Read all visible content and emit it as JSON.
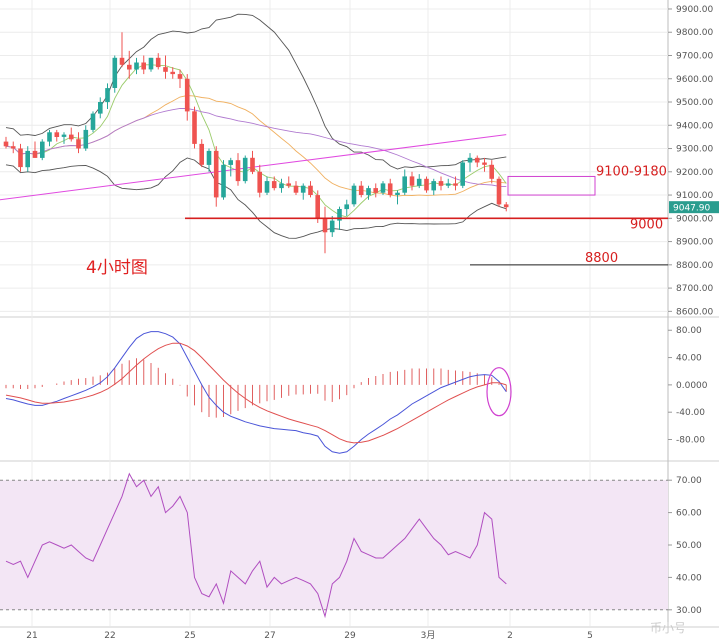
{
  "chart_data": {
    "type": "candlestick",
    "title": "4小时图",
    "watermark": "币小号",
    "colors": {
      "up": "#26a69a",
      "down": "#ef5350",
      "accent": "#d61f1f",
      "rsi_band": "#f3e6f5"
    },
    "price_panel": {
      "ylim": [
        8580,
        9930
      ],
      "yticks": [
        "9900.00",
        "9800.00",
        "9700.00",
        "9600.00",
        "9500.00",
        "9400.00",
        "9300.00",
        "9200.00",
        "9100.00",
        "9000.00",
        "8900.00",
        "8800.00",
        "8700.00",
        "8600.00"
      ],
      "last_price_label": "9047.90",
      "last_price": 9047.9,
      "candles": [
        [
          9330,
          9350,
          9300,
          9310
        ],
        [
          9310,
          9330,
          9280,
          9300
        ],
        [
          9300,
          9320,
          9200,
          9220
        ],
        [
          9220,
          9310,
          9200,
          9290
        ],
        [
          9290,
          9330,
          9260,
          9260
        ],
        [
          9260,
          9340,
          9250,
          9330
        ],
        [
          9330,
          9380,
          9310,
          9370
        ],
        [
          9370,
          9380,
          9330,
          9350
        ],
        [
          9350,
          9370,
          9320,
          9360
        ],
        [
          9360,
          9390,
          9330,
          9340
        ],
        [
          9340,
          9370,
          9280,
          9300
        ],
        [
          9300,
          9400,
          9290,
          9380
        ],
        [
          9380,
          9460,
          9370,
          9450
        ],
        [
          9450,
          9520,
          9430,
          9500
        ],
        [
          9500,
          9580,
          9470,
          9560
        ],
        [
          9560,
          9700,
          9540,
          9690
        ],
        [
          9690,
          9800,
          9650,
          9660
        ],
        [
          9660,
          9720,
          9600,
          9640
        ],
        [
          9640,
          9690,
          9620,
          9670
        ],
        [
          9670,
          9700,
          9620,
          9640
        ],
        [
          9640,
          9690,
          9630,
          9690
        ],
        [
          9690,
          9710,
          9640,
          9650
        ],
        [
          9650,
          9700,
          9600,
          9630
        ],
        [
          9630,
          9650,
          9600,
          9620
        ],
        [
          9620,
          9640,
          9560,
          9600
        ],
        [
          9600,
          9620,
          9420,
          9460
        ],
        [
          9460,
          9480,
          9300,
          9320
        ],
        [
          9320,
          9340,
          9220,
          9230
        ],
        [
          9230,
          9300,
          9200,
          9290
        ],
        [
          9290,
          9310,
          9050,
          9090
        ],
        [
          9090,
          9250,
          9080,
          9230
        ],
        [
          9230,
          9260,
          9180,
          9250
        ],
        [
          9250,
          9280,
          9140,
          9160
        ],
        [
          9160,
          9270,
          9150,
          9260
        ],
        [
          9260,
          9290,
          9190,
          9200
        ],
        [
          9200,
          9230,
          9090,
          9110
        ],
        [
          9110,
          9180,
          9100,
          9160
        ],
        [
          9160,
          9180,
          9120,
          9130
        ],
        [
          9130,
          9170,
          9110,
          9150
        ],
        [
          9150,
          9180,
          9130,
          9140
        ],
        [
          9140,
          9160,
          9100,
          9110
        ],
        [
          9110,
          9150,
          9080,
          9140
        ],
        [
          9140,
          9160,
          9090,
          9100
        ],
        [
          9100,
          9120,
          8980,
          9000
        ],
        [
          9000,
          9050,
          8850,
          8940
        ],
        [
          8940,
          9010,
          8920,
          8990
        ],
        [
          8990,
          9050,
          8950,
          9040
        ],
        [
          9040,
          9080,
          9010,
          9060
        ],
        [
          9060,
          9150,
          9050,
          9140
        ],
        [
          9140,
          9160,
          9090,
          9100
        ],
        [
          9100,
          9140,
          9080,
          9130
        ],
        [
          9130,
          9150,
          9090,
          9110
        ],
        [
          9110,
          9160,
          9100,
          9150
        ],
        [
          9150,
          9170,
          9090,
          9100
        ],
        [
          9100,
          9120,
          9060,
          9110
        ],
        [
          9110,
          9210,
          9100,
          9180
        ],
        [
          9180,
          9200,
          9120,
          9140
        ],
        [
          9140,
          9190,
          9130,
          9170
        ],
        [
          9170,
          9180,
          9110,
          9120
        ],
        [
          9120,
          9170,
          9100,
          9160
        ],
        [
          9160,
          9180,
          9120,
          9140
        ],
        [
          9140,
          9170,
          9130,
          9150
        ],
        [
          9150,
          9180,
          9120,
          9140
        ],
        [
          9140,
          9250,
          9130,
          9240
        ],
        [
          9240,
          9280,
          9200,
          9260
        ],
        [
          9260,
          9270,
          9220,
          9240
        ],
        [
          9240,
          9260,
          9200,
          9230
        ],
        [
          9230,
          9250,
          9150,
          9170
        ],
        [
          9170,
          9180,
          9050,
          9060
        ],
        [
          9060,
          9070,
          9030,
          9048
        ]
      ],
      "annotations": [
        {
          "label": "9100-9180",
          "low": 9100,
          "high": 9180
        },
        {
          "label": "9000",
          "value": 9000
        },
        {
          "label": "8800",
          "value": 8800
        }
      ]
    },
    "macd_panel": {
      "ylim": [
        -110,
        95
      ],
      "yticks": [
        "80.00",
        "40.00",
        "0.0000",
        "-40.00",
        "-80.00"
      ],
      "macd": [
        -20,
        -22,
        -25,
        -28,
        -30,
        -30,
        -27,
        -24,
        -20,
        -16,
        -12,
        -8,
        -3,
        3,
        12,
        25,
        40,
        55,
        68,
        75,
        78,
        78,
        75,
        70,
        60,
        40,
        20,
        0,
        -18,
        -30,
        -40,
        -46,
        -50,
        -54,
        -57,
        -60,
        -62,
        -64,
        -65,
        -66,
        -67,
        -70,
        -72,
        -75,
        -90,
        -98,
        -100,
        -98,
        -90,
        -80,
        -72,
        -65,
        -58,
        -50,
        -44,
        -36,
        -28,
        -22,
        -16,
        -10,
        -4,
        0,
        4,
        8,
        12,
        14,
        15,
        14,
        5,
        -10
      ],
      "signal": [
        -15,
        -17,
        -19,
        -22,
        -25,
        -27,
        -27,
        -26,
        -25,
        -23,
        -21,
        -18,
        -15,
        -11,
        -6,
        1,
        9,
        19,
        29,
        38,
        46,
        53,
        58,
        61,
        61,
        57,
        50,
        40,
        29,
        18,
        7,
        -3,
        -12,
        -20,
        -27,
        -33,
        -38,
        -42,
        -46,
        -50,
        -53,
        -56,
        -59,
        -62,
        -67,
        -73,
        -79,
        -83,
        -85,
        -84,
        -82,
        -78,
        -74,
        -69,
        -64,
        -58,
        -52,
        -46,
        -40,
        -34,
        -28,
        -22,
        -17,
        -12,
        -7,
        -3,
        0,
        3,
        3,
        0
      ],
      "histogram": [
        -5,
        -5,
        -6,
        -6,
        -5,
        -3,
        0,
        2,
        5,
        7,
        9,
        10,
        12,
        14,
        18,
        24,
        31,
        36,
        39,
        37,
        32,
        25,
        17,
        9,
        -1,
        -17,
        -30,
        -40,
        -47,
        -48,
        -47,
        -43,
        -38,
        -34,
        -30,
        -27,
        -24,
        -22,
        -19,
        -16,
        -14,
        -14,
        -13,
        -13,
        -23,
        -25,
        -21,
        -15,
        -5,
        4,
        10,
        13,
        16,
        19,
        20,
        22,
        24,
        24,
        24,
        24,
        24,
        22,
        21,
        20,
        19,
        17,
        15,
        11,
        2,
        -10
      ]
    },
    "rsi_panel": {
      "ylim": [
        25,
        75
      ],
      "yticks": [
        "70.00",
        "60.00",
        "50.00",
        "40.00",
        "30.00"
      ],
      "overbought": 70,
      "oversold": 30,
      "values": [
        45,
        44,
        45,
        40,
        45,
        50,
        51,
        50,
        49,
        50,
        48,
        46,
        45,
        50,
        55,
        60,
        65,
        72,
        68,
        70,
        65,
        68,
        60,
        62,
        65,
        60,
        40,
        35,
        34,
        38,
        32,
        42,
        40,
        38,
        42,
        45,
        37,
        40,
        38,
        39,
        40,
        39,
        38,
        35,
        28,
        38,
        40,
        45,
        52,
        48,
        47,
        46,
        46,
        48,
        50,
        52,
        55,
        58,
        55,
        52,
        50,
        47,
        48,
        47,
        46,
        50,
        60,
        58,
        40,
        38
      ]
    },
    "x_tick_labels": [
      "21",
      "22",
      "25",
      "27",
      "29",
      "3月",
      "2",
      "5"
    ]
  }
}
